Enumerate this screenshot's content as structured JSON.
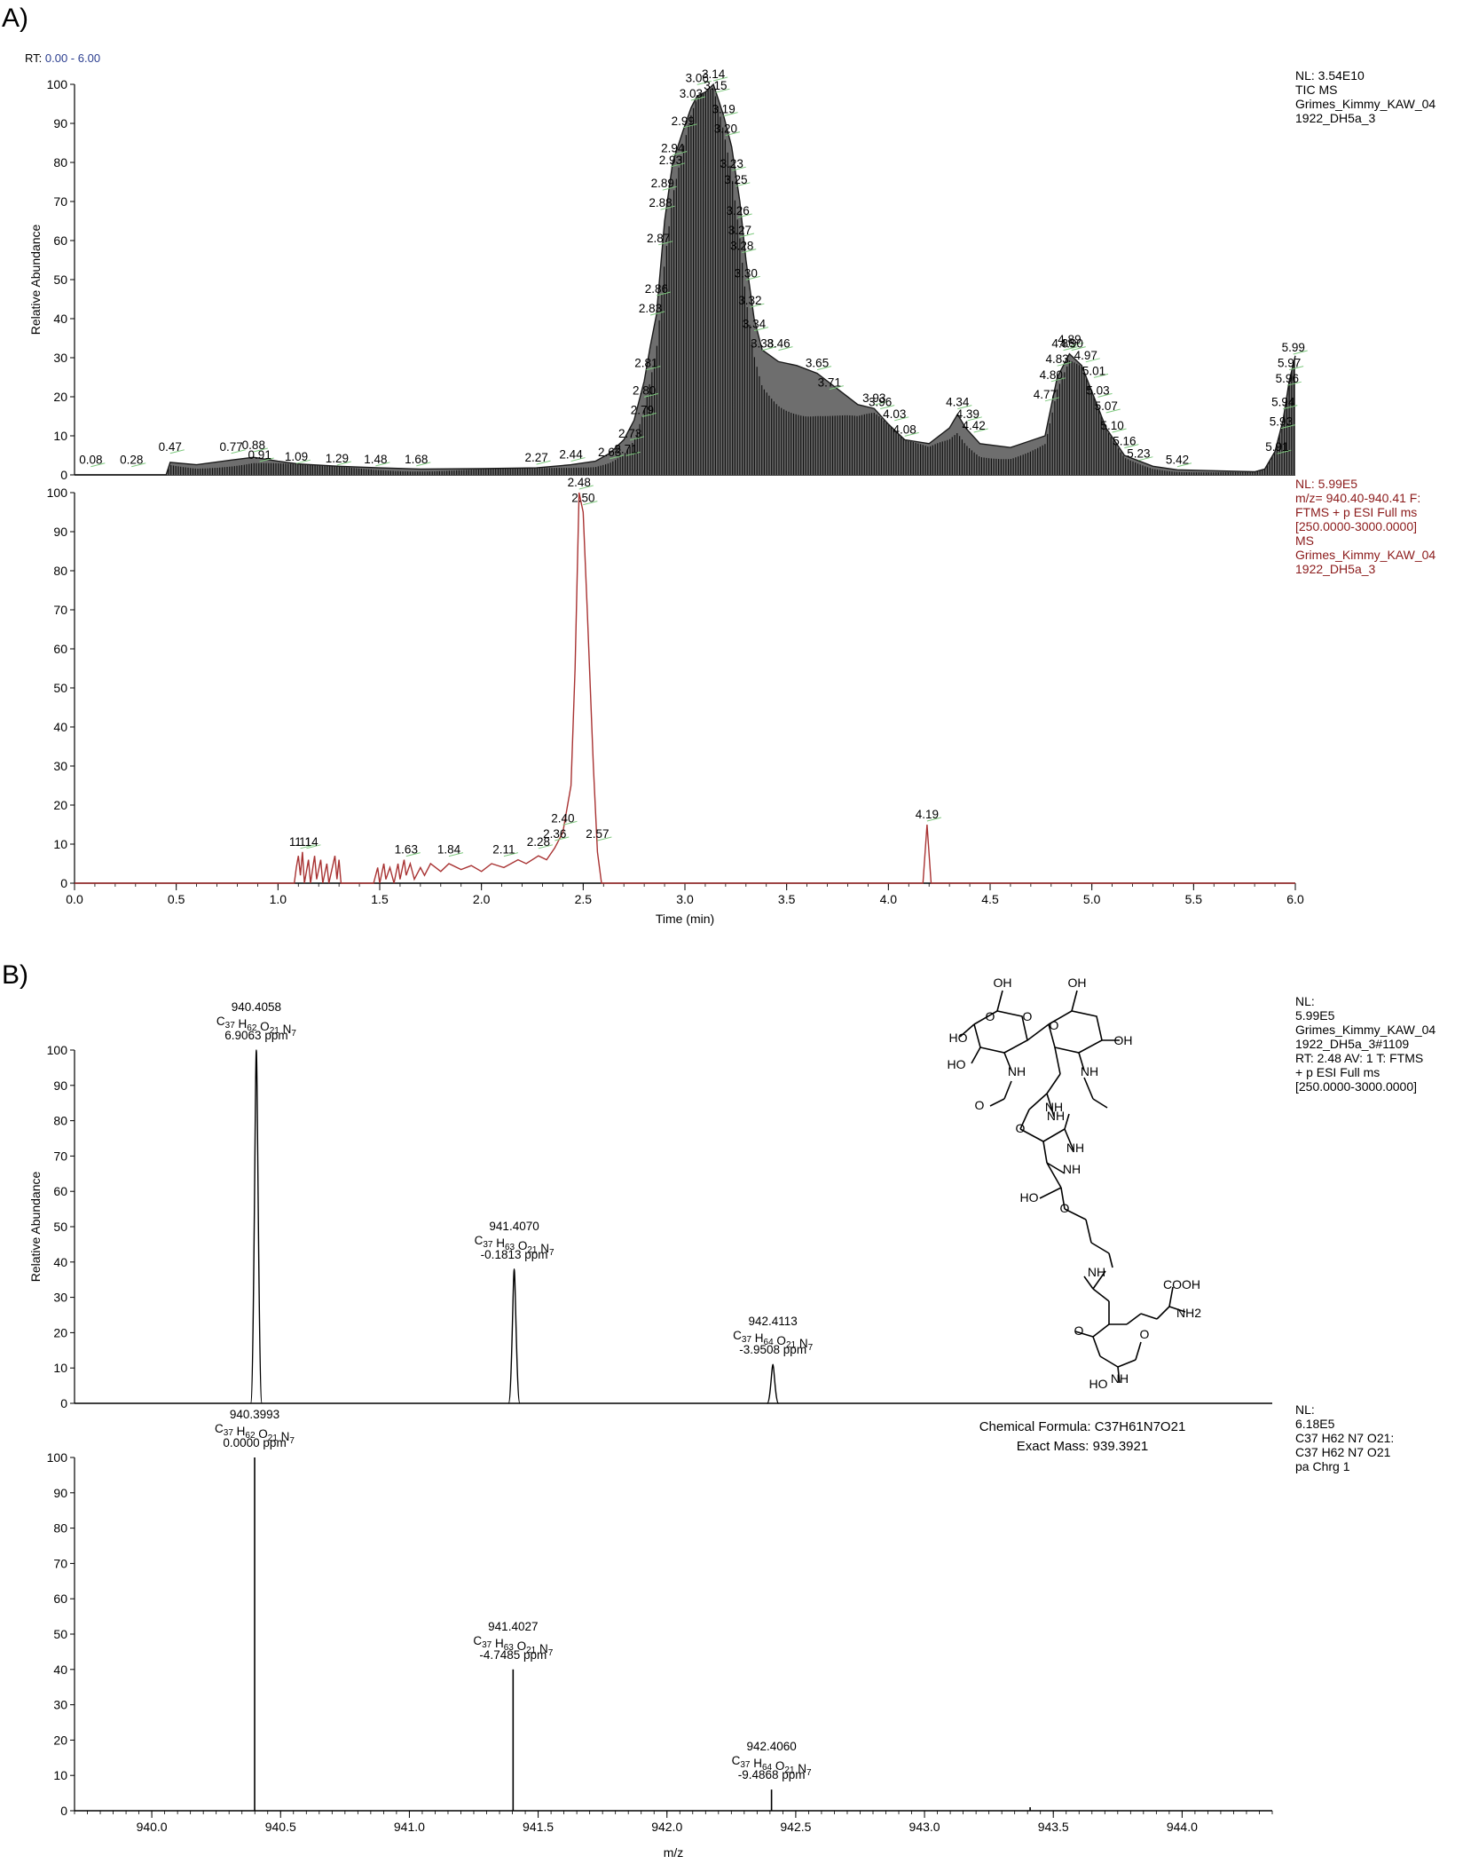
{
  "chart_data": [
    {
      "id": "tic",
      "panel": "A)",
      "type": "line",
      "range_label": "RT: 0.00 - 6.00",
      "info": [
        "NL: 3.54E10",
        "TIC  MS",
        "Grimes_Kimmy_KAW_04",
        "1922_DH5a_3"
      ],
      "ylabel": "Relative Abundance",
      "ylim": [
        0,
        100
      ],
      "xlim": [
        0,
        6
      ],
      "yticks": [
        "0",
        "10",
        "20",
        "30",
        "40",
        "50",
        "60",
        "70",
        "80",
        "90",
        "100"
      ],
      "color": "#1a1a1a",
      "profile": [
        [
          0,
          0
        ],
        [
          0.45,
          0
        ],
        [
          0.47,
          3.2
        ],
        [
          0.6,
          2.6
        ],
        [
          0.77,
          3.8
        ],
        [
          0.88,
          4.5
        ],
        [
          1.0,
          3.5
        ],
        [
          1.1,
          2.8
        ],
        [
          1.3,
          2.2
        ],
        [
          1.5,
          1.8
        ],
        [
          1.7,
          1.5
        ],
        [
          2.0,
          1.6
        ],
        [
          2.27,
          1.8
        ],
        [
          2.44,
          2.6
        ],
        [
          2.56,
          3.5
        ],
        [
          2.63,
          5.5
        ],
        [
          2.7,
          9
        ],
        [
          2.75,
          14
        ],
        [
          2.8,
          24
        ],
        [
          2.83,
          33
        ],
        [
          2.86,
          41
        ],
        [
          2.9,
          65
        ],
        [
          2.94,
          80
        ],
        [
          2.99,
          88
        ],
        [
          3.03,
          94
        ],
        [
          3.06,
          97
        ],
        [
          3.1,
          98
        ],
        [
          3.14,
          100
        ],
        [
          3.19,
          92
        ],
        [
          3.23,
          84
        ],
        [
          3.27,
          70
        ],
        [
          3.3,
          55
        ],
        [
          3.34,
          40
        ],
        [
          3.38,
          32
        ],
        [
          3.46,
          29
        ],
        [
          3.55,
          28
        ],
        [
          3.65,
          26
        ],
        [
          3.75,
          22
        ],
        [
          3.85,
          18
        ],
        [
          3.93,
          17
        ],
        [
          4.0,
          13
        ],
        [
          4.08,
          9
        ],
        [
          4.2,
          8
        ],
        [
          4.3,
          12
        ],
        [
          4.34,
          15.5
        ],
        [
          4.38,
          12
        ],
        [
          4.45,
          8
        ],
        [
          4.6,
          7
        ],
        [
          4.77,
          10
        ],
        [
          4.83,
          25
        ],
        [
          4.89,
          31
        ],
        [
          4.95,
          28
        ],
        [
          5.01,
          20
        ],
        [
          5.07,
          12
        ],
        [
          5.16,
          5
        ],
        [
          5.3,
          2.2
        ],
        [
          5.42,
          1.3
        ],
        [
          5.8,
          0.8
        ],
        [
          5.85,
          1.5
        ],
        [
          5.9,
          6
        ],
        [
          5.94,
          14
        ],
        [
          5.97,
          24
        ],
        [
          6.0,
          30.5
        ]
      ],
      "peaks": [
        {
          "label": "0.08",
          "x": 0.08,
          "y": 1.2
        },
        {
          "label": "0.28",
          "x": 0.28,
          "y": 1.2
        },
        {
          "label": "0.47",
          "x": 0.47,
          "y": 4.6
        },
        {
          "label": "0.77",
          "x": 0.77,
          "y": 4.6
        },
        {
          "label": "0.88",
          "x": 0.88,
          "y": 5.0
        },
        {
          "label": "0.91",
          "x": 0.91,
          "y": 2.5
        },
        {
          "label": "1.09",
          "x": 1.09,
          "y": 2.0
        },
        {
          "label": "1.29",
          "x": 1.29,
          "y": 1.6
        },
        {
          "label": "1.48",
          "x": 1.48,
          "y": 1.4
        },
        {
          "label": "1.68",
          "x": 1.68,
          "y": 1.4
        },
        {
          "label": "2.27",
          "x": 2.27,
          "y": 1.8
        },
        {
          "label": "2.44",
          "x": 2.44,
          "y": 2.6
        },
        {
          "label": "2.63",
          "x": 2.63,
          "y": 3.2
        },
        {
          "label": "2.71",
          "x": 2.71,
          "y": 4.0
        },
        {
          "label": "2.73",
          "x": 2.73,
          "y": 8.0
        },
        {
          "label": "2.79",
          "x": 2.79,
          "y": 14
        },
        {
          "label": "2.80",
          "x": 2.8,
          "y": 19
        },
        {
          "label": "2.81",
          "x": 2.81,
          "y": 26
        },
        {
          "label": "2.83",
          "x": 2.83,
          "y": 40
        },
        {
          "label": "2.86",
          "x": 2.86,
          "y": 45
        },
        {
          "label": "2.87",
          "x": 2.87,
          "y": 58
        },
        {
          "label": "2.88",
          "x": 2.88,
          "y": 67
        },
        {
          "label": "2.89",
          "x": 2.89,
          "y": 72
        },
        {
          "label": "2.93",
          "x": 2.93,
          "y": 78
        },
        {
          "label": "2.94",
          "x": 2.94,
          "y": 81
        },
        {
          "label": "2.99",
          "x": 2.99,
          "y": 88
        },
        {
          "label": "3.03",
          "x": 3.03,
          "y": 95
        },
        {
          "label": "3.06",
          "x": 3.06,
          "y": 99
        },
        {
          "label": "3.14",
          "x": 3.14,
          "y": 100
        },
        {
          "label": "3.15",
          "x": 3.15,
          "y": 97
        },
        {
          "label": "3.19",
          "x": 3.19,
          "y": 91
        },
        {
          "label": "3.20",
          "x": 3.2,
          "y": 86
        },
        {
          "label": "3.23",
          "x": 3.23,
          "y": 77
        },
        {
          "label": "3.25",
          "x": 3.25,
          "y": 73
        },
        {
          "label": "3.26",
          "x": 3.26,
          "y": 65
        },
        {
          "label": "3.27",
          "x": 3.27,
          "y": 60
        },
        {
          "label": "3.28",
          "x": 3.28,
          "y": 56
        },
        {
          "label": "3.30",
          "x": 3.3,
          "y": 49
        },
        {
          "label": "3.32",
          "x": 3.32,
          "y": 42
        },
        {
          "label": "3.34",
          "x": 3.34,
          "y": 36
        },
        {
          "label": "3.38",
          "x": 3.38,
          "y": 31
        },
        {
          "label": "3.46",
          "x": 3.46,
          "y": 31
        },
        {
          "label": "3.65",
          "x": 3.65,
          "y": 26
        },
        {
          "label": "3.71",
          "x": 3.71,
          "y": 21
        },
        {
          "label": "3.93",
          "x": 3.93,
          "y": 17
        },
        {
          "label": "3.96",
          "x": 3.96,
          "y": 16
        },
        {
          "label": "4.03",
          "x": 4.03,
          "y": 13
        },
        {
          "label": "4.08",
          "x": 4.08,
          "y": 9
        },
        {
          "label": "4.34",
          "x": 4.34,
          "y": 16
        },
        {
          "label": "4.39",
          "x": 4.39,
          "y": 13
        },
        {
          "label": "4.42",
          "x": 4.42,
          "y": 10
        },
        {
          "label": "4.77",
          "x": 4.77,
          "y": 18
        },
        {
          "label": "4.80",
          "x": 4.8,
          "y": 23
        },
        {
          "label": "4.83",
          "x": 4.83,
          "y": 27
        },
        {
          "label": "4.86",
          "x": 4.86,
          "y": 31
        },
        {
          "label": "4.89",
          "x": 4.89,
          "y": 32
        },
        {
          "label": "4.90",
          "x": 4.9,
          "y": 31
        },
        {
          "label": "4.97",
          "x": 4.97,
          "y": 28
        },
        {
          "label": "5.01",
          "x": 5.01,
          "y": 24
        },
        {
          "label": "5.03",
          "x": 5.03,
          "y": 19
        },
        {
          "label": "5.07",
          "x": 5.07,
          "y": 15
        },
        {
          "label": "5.10",
          "x": 5.1,
          "y": 10
        },
        {
          "label": "5.16",
          "x": 5.16,
          "y": 6
        },
        {
          "label": "5.23",
          "x": 5.23,
          "y": 2.8
        },
        {
          "label": "5.42",
          "x": 5.42,
          "y": 1.2
        },
        {
          "label": "5.91",
          "x": 5.91,
          "y": 4.5
        },
        {
          "label": "5.93",
          "x": 5.93,
          "y": 11
        },
        {
          "label": "5.94",
          "x": 5.94,
          "y": 16
        },
        {
          "label": "5.96",
          "x": 5.96,
          "y": 22
        },
        {
          "label": "5.97",
          "x": 5.97,
          "y": 26
        },
        {
          "label": "5.99",
          "x": 5.99,
          "y": 30
        }
      ]
    },
    {
      "id": "xic",
      "type": "line",
      "info": [
        "NL: 5.99E5",
        "m/z= 940.40-940.41 F:",
        "FTMS + p ESI Full ms",
        "[250.0000-3000.0000]",
        "MS",
        "Grimes_Kimmy_KAW_04",
        "1922_DH5a_3"
      ],
      "xlabel": "Time (min)",
      "ylim": [
        0,
        100
      ],
      "xlim": [
        0,
        6
      ],
      "xticks": [
        "0.0",
        "0.5",
        "1.0",
        "1.5",
        "2.0",
        "2.5",
        "3.0",
        "3.5",
        "4.0",
        "4.5",
        "5.0",
        "5.5",
        "6.0"
      ],
      "yticks": [
        "0",
        "10",
        "20",
        "30",
        "40",
        "50",
        "60",
        "70",
        "80",
        "90",
        "100"
      ],
      "color": "#a83232",
      "profile": [
        [
          0,
          0
        ],
        [
          1.08,
          0
        ],
        [
          1.09,
          4
        ],
        [
          1.1,
          7
        ],
        [
          1.11,
          2
        ],
        [
          1.12,
          8
        ],
        [
          1.13,
          0
        ],
        [
          1.15,
          6
        ],
        [
          1.16,
          0
        ],
        [
          1.18,
          7
        ],
        [
          1.19,
          1
        ],
        [
          1.21,
          6
        ],
        [
          1.22,
          0
        ],
        [
          1.24,
          5
        ],
        [
          1.25,
          0
        ],
        [
          1.28,
          7
        ],
        [
          1.29,
          1
        ],
        [
          1.3,
          6
        ],
        [
          1.31,
          0
        ],
        [
          1.47,
          0
        ],
        [
          1.49,
          4
        ],
        [
          1.5,
          0
        ],
        [
          1.52,
          5
        ],
        [
          1.53,
          1
        ],
        [
          1.55,
          4
        ],
        [
          1.57,
          0
        ],
        [
          1.59,
          5
        ],
        [
          1.6,
          1
        ],
        [
          1.62,
          6
        ],
        [
          1.63,
          2
        ],
        [
          1.65,
          5
        ],
        [
          1.67,
          1
        ],
        [
          1.7,
          4
        ],
        [
          1.72,
          2
        ],
        [
          1.75,
          5
        ],
        [
          1.8,
          3
        ],
        [
          1.84,
          5
        ],
        [
          1.9,
          3.5
        ],
        [
          1.95,
          4.5
        ],
        [
          2.0,
          3
        ],
        [
          2.05,
          5
        ],
        [
          2.11,
          4
        ],
        [
          2.18,
          6
        ],
        [
          2.22,
          5
        ],
        [
          2.28,
          7
        ],
        [
          2.32,
          6
        ],
        [
          2.36,
          9
        ],
        [
          2.4,
          13
        ],
        [
          2.44,
          25
        ],
        [
          2.46,
          55
        ],
        [
          2.48,
          100
        ],
        [
          2.5,
          95
        ],
        [
          2.52,
          70
        ],
        [
          2.55,
          30
        ],
        [
          2.57,
          8
        ],
        [
          2.59,
          0
        ],
        [
          4.17,
          0
        ],
        [
          4.19,
          15
        ],
        [
          4.21,
          0
        ],
        [
          6.0,
          0
        ]
      ],
      "peaks": [
        {
          "label": "1.11",
          "x": 1.11,
          "y": 8
        },
        {
          "label": "1.14",
          "x": 1.14,
          "y": 8
        },
        {
          "label": "1.63",
          "x": 1.63,
          "y": 6
        },
        {
          "label": "1.84",
          "x": 1.84,
          "y": 6
        },
        {
          "label": "2.11",
          "x": 2.11,
          "y": 6
        },
        {
          "label": "2.28",
          "x": 2.28,
          "y": 8
        },
        {
          "label": "2.36",
          "x": 2.36,
          "y": 10
        },
        {
          "label": "2.40",
          "x": 2.4,
          "y": 14
        },
        {
          "label": "2.48",
          "x": 2.48,
          "y": 100
        },
        {
          "label": "2.50",
          "x": 2.5,
          "y": 96
        },
        {
          "label": "2.57",
          "x": 2.57,
          "y": 10
        },
        {
          "label": "4.19",
          "x": 4.19,
          "y": 15
        }
      ]
    },
    {
      "id": "ms",
      "panel": "B)",
      "type": "line",
      "info": [
        "NL:",
        "5.99E5",
        "Grimes_Kimmy_KAW_04",
        "1922_DH5a_3#1109",
        "RT: 2.48  AV: 1 T: FTMS",
        "+ p ESI Full ms",
        "[250.0000-3000.0000]"
      ],
      "ylabel": "Relative Abundance",
      "ylim": [
        0,
        100
      ],
      "xlim": [
        939.7,
        944.35
      ],
      "yticks": [
        "0",
        "10",
        "20",
        "30",
        "40",
        "50",
        "60",
        "70",
        "80",
        "90",
        "100"
      ],
      "color": "#000000",
      "peak_width": 0.022,
      "peaks": [
        {
          "mz": 940.4058,
          "y": 100,
          "lines": [
            "940.4058",
            "C37 H62 O21 N7",
            "6.9063 ppm"
          ]
        },
        {
          "mz": 941.407,
          "y": 38,
          "lines": [
            "941.4070",
            "C37 H63 O21 N7",
            "-0.1813 ppm"
          ]
        },
        {
          "mz": 942.4113,
          "y": 11,
          "lines": [
            "942.4113",
            "C37 H64 O21 N7",
            "-3.9508 ppm"
          ]
        }
      ]
    },
    {
      "id": "theo",
      "type": "bar",
      "info": [
        "NL:",
        "6.18E5",
        "C37 H62 N7 O21:",
        "C37 H62 N7 O21",
        "pa Chrg 1"
      ],
      "xlabel": "m/z",
      "ylim": [
        0,
        100
      ],
      "xlim": [
        939.7,
        944.35
      ],
      "xticks": [
        "940.0",
        "940.5",
        "941.0",
        "941.5",
        "942.0",
        "942.5",
        "943.0",
        "943.5",
        "944.0"
      ],
      "yticks": [
        "0",
        "10",
        "20",
        "30",
        "40",
        "50",
        "60",
        "70",
        "80",
        "90",
        "100"
      ],
      "color": "#000000",
      "sticks": [
        {
          "mz": 940.3993,
          "y": 100,
          "lines": [
            "940.3993",
            "C37 H62 O21 N7",
            "0.0000 ppm"
          ]
        },
        {
          "mz": 941.4027,
          "y": 40,
          "lines": [
            "941.4027",
            "C37 H63 O21 N7",
            "-4.7485 ppm"
          ]
        },
        {
          "mz": 942.406,
          "y": 6,
          "lines": [
            "942.4060",
            "C37 H64 O21 N7",
            "-9.4868 ppm"
          ]
        },
        {
          "mz": 943.41,
          "y": 1,
          "lines": []
        }
      ]
    }
  ],
  "structure": {
    "labels": [
      "OH",
      "OH",
      "HO",
      "O",
      "O",
      "O",
      "OH",
      "HO",
      "NH",
      "NH",
      "NH",
      "O",
      "NH",
      "NH",
      "O",
      "NH",
      "HO",
      "O",
      "NH",
      "NH2",
      "O",
      "COOH",
      "NH",
      "O",
      "HO"
    ],
    "formula_label": "Chemical Formula: C37H61N7O21",
    "mass_label": "Exact Mass: 939.3921"
  }
}
